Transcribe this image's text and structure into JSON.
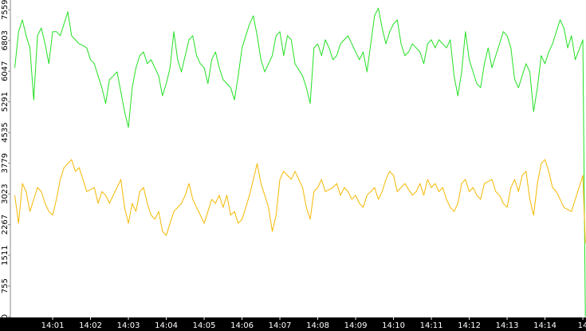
{
  "chart_data": {
    "type": "line",
    "x": [
      0,
      6,
      12,
      18,
      24,
      30,
      36,
      42,
      48,
      54,
      60,
      66,
      72,
      78,
      84,
      90,
      96,
      102,
      108,
      114,
      120,
      126,
      132,
      138,
      144,
      150,
      156,
      162,
      168,
      174,
      180,
      186,
      192,
      198,
      204,
      210,
      216,
      222,
      228,
      234,
      240,
      246,
      252,
      258,
      264,
      270,
      276,
      282,
      288,
      294,
      300,
      306,
      312,
      318,
      324,
      330,
      336,
      342,
      348,
      354,
      360,
      366,
      372,
      378,
      384,
      390,
      396,
      402,
      408,
      414,
      420,
      426,
      432,
      438,
      444,
      450,
      456,
      462,
      468,
      474,
      480,
      486,
      492,
      498,
      504,
      510,
      516,
      522,
      528,
      534,
      540,
      546,
      552,
      558,
      564,
      570,
      576,
      582,
      588,
      594,
      600,
      606,
      612,
      618,
      624,
      630,
      636,
      642,
      648,
      654,
      660,
      666,
      672,
      678,
      684,
      690,
      696,
      702,
      708,
      714,
      720,
      726,
      732,
      738,
      744,
      750,
      756,
      762,
      768,
      774,
      780,
      786,
      792,
      798,
      804,
      810,
      816,
      822,
      828,
      834,
      840,
      846,
      852,
      858,
      864,
      870,
      876,
      882,
      888,
      894,
      900,
      904
    ],
    "series": [
      {
        "color": "#22e022",
        "values": [
          6130,
          7020,
          7310,
          6920,
          6620,
          5340,
          6920,
          7110,
          6720,
          6230,
          7020,
          7020,
          6920,
          7210,
          7510,
          6920,
          6820,
          6720,
          6680,
          6620,
          6330,
          6230,
          5930,
          5640,
          5250,
          5840,
          5930,
          6030,
          5540,
          5050,
          4660,
          5640,
          6130,
          6430,
          6520,
          6230,
          6330,
          6130,
          5930,
          5440,
          5740,
          6130,
          7020,
          6330,
          6030,
          6430,
          6820,
          6920,
          6430,
          6230,
          6130,
          5740,
          6330,
          6520,
          6130,
          5840,
          5740,
          5640,
          5340,
          5930,
          6620,
          6920,
          7210,
          7410,
          6920,
          6330,
          6030,
          6230,
          6430,
          6920,
          7020,
          6430,
          6920,
          6820,
          6230,
          6080,
          5930,
          5640,
          5250,
          6620,
          6720,
          6430,
          6820,
          6620,
          6330,
          6430,
          6720,
          6820,
          6920,
          6720,
          6520,
          6330,
          6520,
          6030,
          6720,
          7410,
          7600,
          7110,
          6720,
          7020,
          7210,
          7310,
          6720,
          6430,
          6520,
          6720,
          6620,
          6520,
          6230,
          6720,
          6820,
          6620,
          6820,
          6720,
          6620,
          6820,
          5930,
          5440,
          6030,
          7020,
          6330,
          6030,
          5740,
          5640,
          6230,
          6620,
          6130,
          6430,
          6720,
          7020,
          6920,
          6620,
          5840,
          5640,
          5940,
          6230,
          6030,
          5050,
          5640,
          6430,
          6230,
          6520,
          6720,
          7020,
          7310,
          7110,
          6620,
          6920,
          6330,
          6570,
          6820,
          0
        ]
      },
      {
        "color": "#f5b800",
        "values": [
          2990,
          2300,
          3280,
          3080,
          2590,
          2890,
          3180,
          3080,
          2790,
          2590,
          2500,
          2890,
          3380,
          3670,
          3770,
          3870,
          3580,
          3670,
          3380,
          3080,
          3130,
          3180,
          2790,
          3080,
          2990,
          2790,
          2990,
          3180,
          3380,
          2690,
          2300,
          2790,
          2590,
          3080,
          3180,
          2790,
          2500,
          2400,
          2590,
          2100,
          2000,
          2300,
          2590,
          2690,
          2790,
          2990,
          3280,
          2890,
          2690,
          2500,
          2300,
          2590,
          2890,
          2790,
          2990,
          2690,
          2990,
          2500,
          2590,
          2300,
          2400,
          2690,
          3000,
          3380,
          3770,
          3280,
          2990,
          2690,
          2100,
          2500,
          3380,
          3580,
          3480,
          3380,
          3580,
          3380,
          3180,
          2690,
          2400,
          3080,
          3180,
          3380,
          3080,
          3130,
          3180,
          3280,
          2990,
          3180,
          3080,
          2890,
          2990,
          2790,
          2690,
          2990,
          3080,
          3180,
          2890,
          3080,
          3380,
          3580,
          3480,
          3080,
          3180,
          3280,
          3130,
          2990,
          3080,
          3280,
          2990,
          3380,
          3180,
          3280,
          3080,
          3180,
          2890,
          2690,
          2590,
          2790,
          3280,
          3380,
          3080,
          3180,
          2990,
          2890,
          3280,
          3330,
          3380,
          3080,
          2990,
          2790,
          2690,
          3180,
          3380,
          3080,
          3480,
          3580,
          2890,
          2500,
          3280,
          3770,
          3870,
          3580,
          3180,
          3080,
          2890,
          2690,
          2640,
          2590,
          2890,
          3180,
          3480,
          1810
        ]
      }
    ],
    "xlim": [
      -7,
      905
    ],
    "xticks": [
      {
        "value": 60,
        "label": "14:01"
      },
      {
        "value": 120,
        "label": "14:02"
      },
      {
        "value": 180,
        "label": "14:03"
      },
      {
        "value": 240,
        "label": "14:04"
      },
      {
        "value": 300,
        "label": "14:05"
      },
      {
        "value": 360,
        "label": "14:06"
      },
      {
        "value": 420,
        "label": "14:07"
      },
      {
        "value": 480,
        "label": "14:08"
      },
      {
        "value": 540,
        "label": "14:09"
      },
      {
        "value": 600,
        "label": "14:10"
      },
      {
        "value": 660,
        "label": "14:11"
      },
      {
        "value": 720,
        "label": "14:12"
      },
      {
        "value": 780,
        "label": "14:13"
      },
      {
        "value": 840,
        "label": "14:14"
      },
      {
        "value": 900,
        "label": "14"
      }
    ],
    "ylim": [
      0,
      7800
    ],
    "yticks": [
      0,
      755,
      1511,
      2267,
      3023,
      3779,
      4535,
      5291,
      6047,
      6803,
      7559
    ]
  }
}
